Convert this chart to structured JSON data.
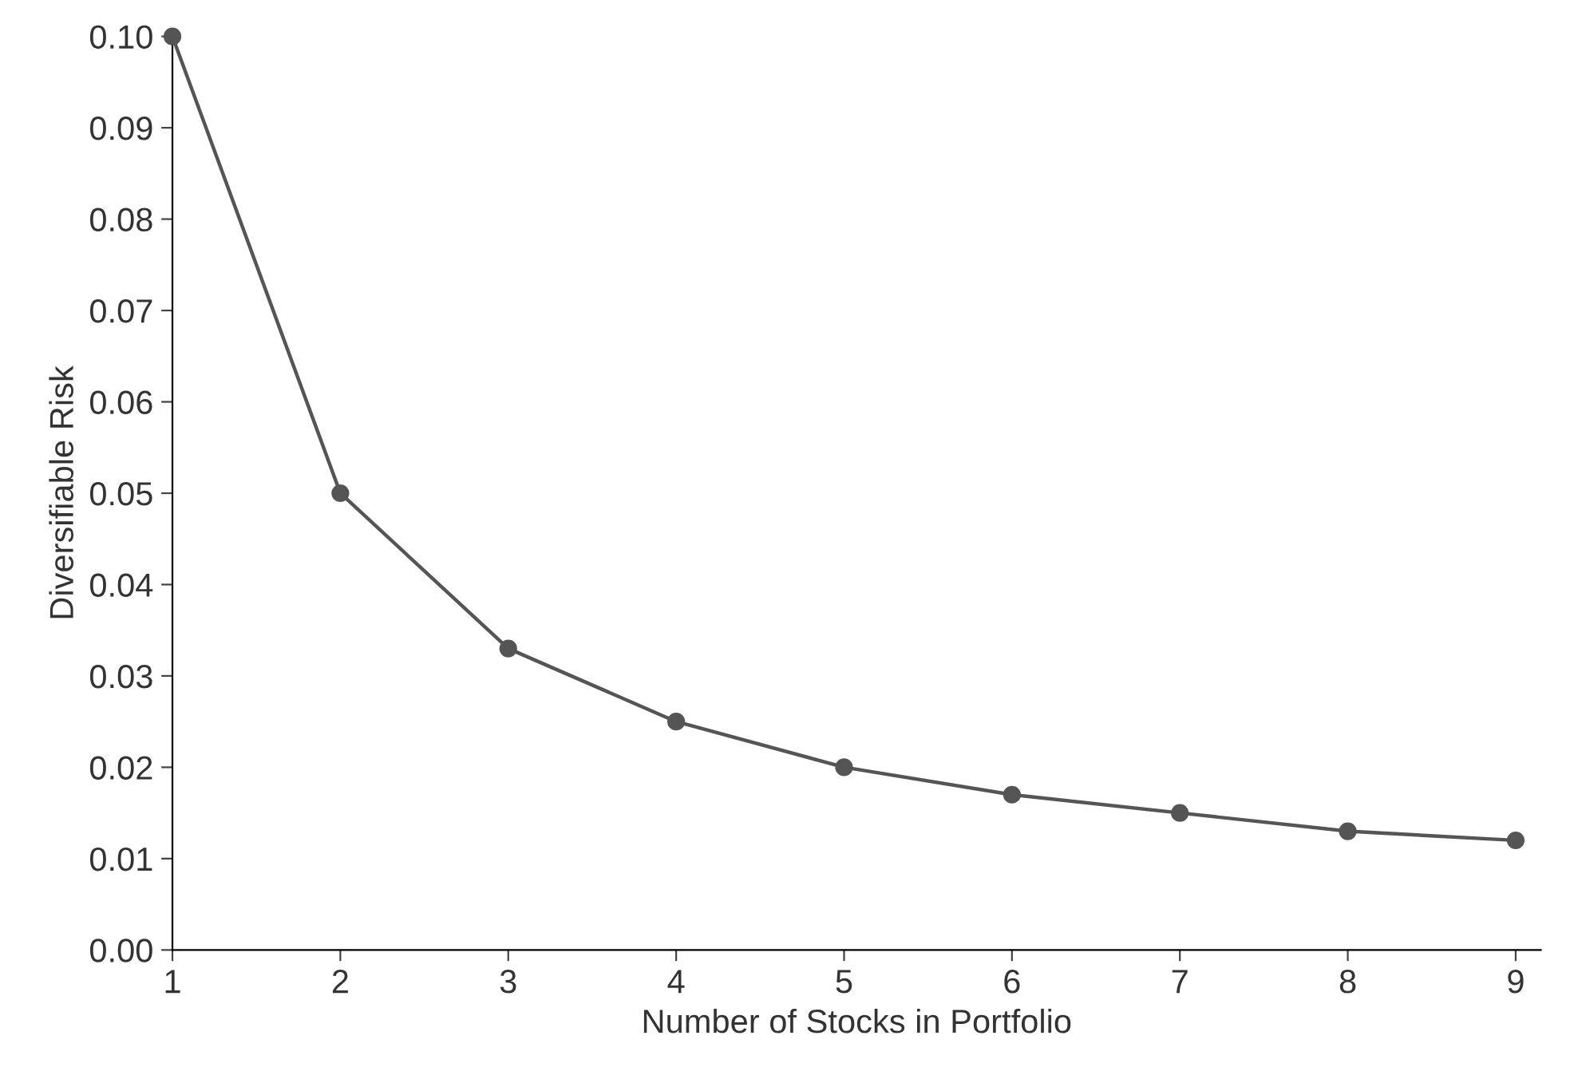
{
  "chart_data": {
    "type": "line",
    "xlabel": "Number of Stocks in Portfolio",
    "ylabel": "Diversifiable Risk",
    "x": [
      1,
      2,
      3,
      4,
      5,
      6,
      7,
      8,
      9
    ],
    "series": [
      {
        "color": "#555555",
        "values": [
          0.1,
          0.05,
          0.033,
          0.025,
          0.02,
          0.017,
          0.015,
          0.013,
          0.012
        ]
      }
    ],
    "marker": "circle",
    "line_style": "solid",
    "grid": false,
    "legend": false,
    "xlim": [
      1,
      9.15
    ],
    "xticks": [
      1,
      2,
      3,
      4,
      5,
      6,
      7,
      8,
      9
    ],
    "ylim": [
      0,
      0.1
    ],
    "yticks": [
      {
        "value": 0,
        "label": "0.00"
      },
      {
        "value": 0.01,
        "label": "0.01"
      },
      {
        "value": 0.02,
        "label": "0.02"
      },
      {
        "value": 0.03,
        "label": "0.03"
      },
      {
        "value": 0.04,
        "label": "0.04"
      },
      {
        "value": 0.05,
        "label": "0.05"
      },
      {
        "value": 0.06,
        "label": "0.06"
      },
      {
        "value": 0.07,
        "label": "0.07"
      },
      {
        "value": 0.08,
        "label": "0.08"
      },
      {
        "value": 0.09,
        "label": "0.09"
      },
      {
        "value": 0.1,
        "label": "0.10"
      }
    ]
  }
}
